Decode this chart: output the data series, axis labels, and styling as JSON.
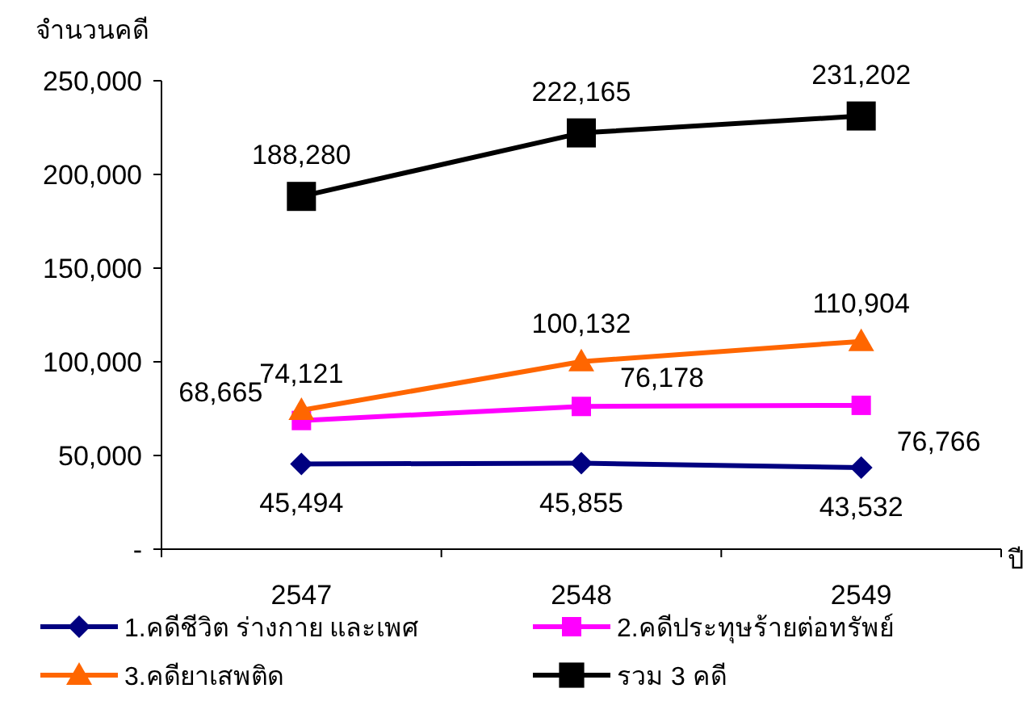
{
  "chart_data": {
    "type": "line",
    "ylabel": "จำนวนคดี",
    "xlabel": "ปี",
    "categories": [
      "2547",
      "2548",
      "2549"
    ],
    "ylim": [
      0,
      250000
    ],
    "yticks": [
      {
        "value": 0,
        "label": "-"
      },
      {
        "value": 50000,
        "label": "50,000"
      },
      {
        "value": 100000,
        "label": "100,000"
      },
      {
        "value": 150000,
        "label": "150,000"
      },
      {
        "value": 200000,
        "label": "200,000"
      },
      {
        "value": 250000,
        "label": "250,000"
      }
    ],
    "grid": false,
    "legend": "bottom",
    "series": [
      {
        "name": "1.คดีชีวิต ร่างกาย และเพศ",
        "color": "#000080",
        "marker": "diamond",
        "values": [
          45494,
          45855,
          43532
        ],
        "value_labels": [
          "45,494",
          "45,855",
          "43,532"
        ]
      },
      {
        "name": "2.คดีประทุษร้ายต่อทรัพย์",
        "color": "#ff00ff",
        "marker": "square",
        "values": [
          68665,
          76178,
          76766
        ],
        "value_labels": [
          "68,665",
          "76,178",
          "76,766"
        ]
      },
      {
        "name": "3.คดียาเสพติด",
        "color": "#ff6600",
        "marker": "triangle",
        "values": [
          74121,
          100132,
          110904
        ],
        "value_labels": [
          "74,121",
          "100,132",
          "110,904"
        ]
      },
      {
        "name": "รวม 3 คดี",
        "color": "#000000",
        "marker": "square",
        "values": [
          188280,
          222165,
          231202
        ],
        "value_labels": [
          "188,280",
          "222,165",
          "231,202"
        ]
      }
    ]
  }
}
